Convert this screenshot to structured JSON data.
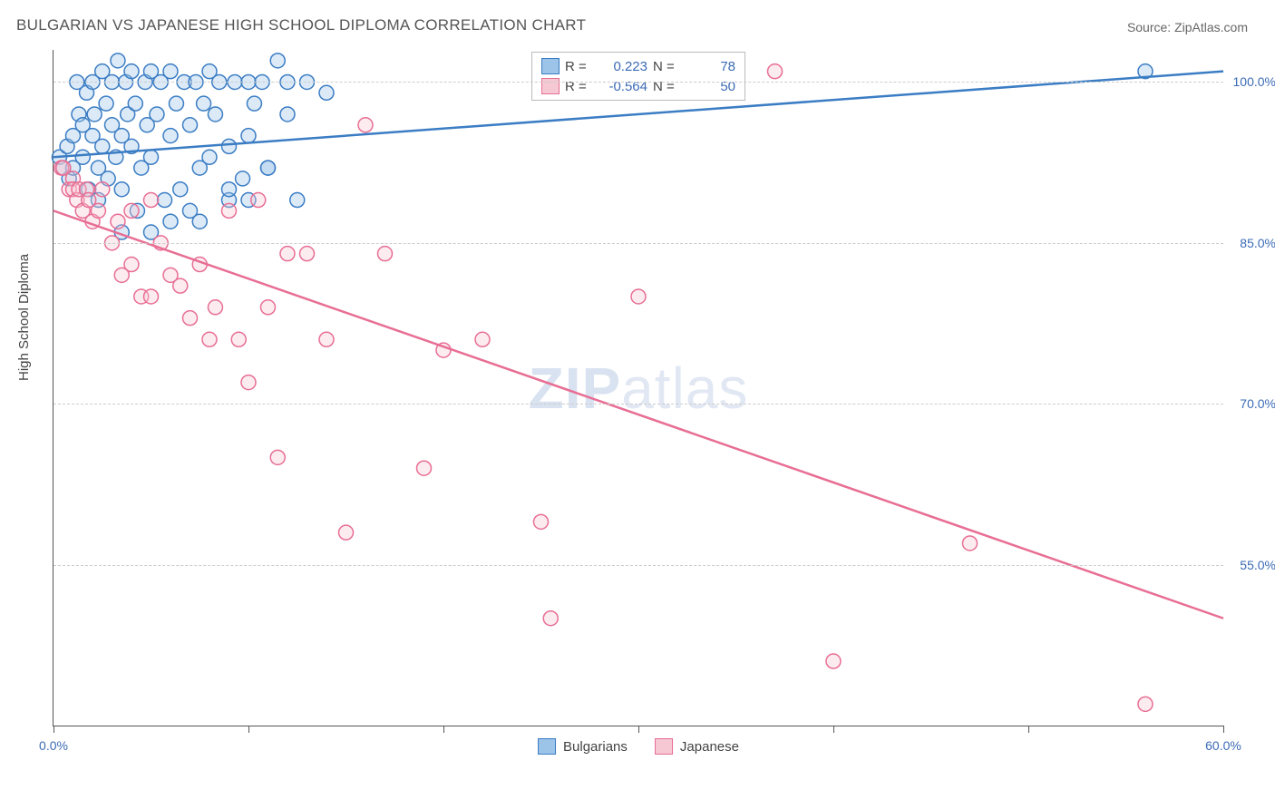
{
  "chart": {
    "type": "scatter",
    "title": "BULGARIAN VS JAPANESE HIGH SCHOOL DIPLOMA CORRELATION CHART",
    "source_label": "Source: ZipAtlas.com",
    "ylabel": "High School Diploma",
    "watermark_prefix": "ZIP",
    "watermark_suffix": "atlas",
    "background_color": "#ffffff",
    "grid_color": "#cccccc",
    "axis_color": "#555555",
    "tick_label_color": "#3b6bb5",
    "title_fontsize": 17,
    "label_fontsize": 15,
    "tick_fontsize": 14,
    "xlim": [
      0,
      60
    ],
    "ylim": [
      40,
      103
    ],
    "xticks": [
      0,
      10,
      20,
      30,
      40,
      50,
      60
    ],
    "xtick_labels": {
      "0": "0.0%",
      "60": "60.0%"
    },
    "yticks": [
      55,
      70,
      85,
      100
    ],
    "ytick_labels": [
      "55.0%",
      "70.0%",
      "85.0%",
      "100.0%"
    ],
    "marker_radius": 8,
    "marker_fill_opacity": 0.35,
    "trend_line_width": 2.5,
    "series": [
      {
        "name": "Bulgarians",
        "fill_color": "#9cc3e8",
        "stroke_color": "#3b7dc4",
        "R": "0.223",
        "N": "78",
        "trend": {
          "x1": 0,
          "y1": 93,
          "x2": 60,
          "y2": 101
        },
        "points": [
          [
            0.3,
            93
          ],
          [
            0.5,
            92
          ],
          [
            0.7,
            94
          ],
          [
            0.8,
            91
          ],
          [
            1,
            95
          ],
          [
            1,
            92
          ],
          [
            1.2,
            100
          ],
          [
            1.3,
            97
          ],
          [
            1.5,
            96
          ],
          [
            1.5,
            93
          ],
          [
            1.7,
            99
          ],
          [
            1.8,
            90
          ],
          [
            2,
            100
          ],
          [
            2,
            95
          ],
          [
            2.1,
            97
          ],
          [
            2.3,
            92
          ],
          [
            2.3,
            89
          ],
          [
            2.5,
            101
          ],
          [
            2.5,
            94
          ],
          [
            2.7,
            98
          ],
          [
            2.8,
            91
          ],
          [
            3,
            100
          ],
          [
            3,
            96
          ],
          [
            3.2,
            93
          ],
          [
            3.3,
            102
          ],
          [
            3.5,
            95
          ],
          [
            3.5,
            90
          ],
          [
            3.7,
            100
          ],
          [
            3.8,
            97
          ],
          [
            4,
            101
          ],
          [
            4,
            94
          ],
          [
            4.2,
            98
          ],
          [
            4.3,
            88
          ],
          [
            4.5,
            92
          ],
          [
            4.7,
            100
          ],
          [
            4.8,
            96
          ],
          [
            5,
            101
          ],
          [
            5,
            93
          ],
          [
            5.3,
            97
          ],
          [
            5.5,
            100
          ],
          [
            5.7,
            89
          ],
          [
            6,
            95
          ],
          [
            6,
            101
          ],
          [
            6.3,
            98
          ],
          [
            6.5,
            90
          ],
          [
            6.7,
            100
          ],
          [
            7,
            96
          ],
          [
            7,
            88
          ],
          [
            7.3,
            100
          ],
          [
            7.5,
            92
          ],
          [
            7.7,
            98
          ],
          [
            8,
            101
          ],
          [
            8,
            93
          ],
          [
            8.3,
            97
          ],
          [
            8.5,
            100
          ],
          [
            9,
            94
          ],
          [
            9,
            89
          ],
          [
            9.3,
            100
          ],
          [
            9.7,
            91
          ],
          [
            10,
            100
          ],
          [
            10,
            95
          ],
          [
            10.3,
            98
          ],
          [
            10.7,
            100
          ],
          [
            11,
            92
          ],
          [
            11.5,
            102
          ],
          [
            12,
            97
          ],
          [
            12,
            100
          ],
          [
            12.5,
            89
          ],
          [
            13,
            100
          ],
          [
            3.5,
            86
          ],
          [
            5,
            86
          ],
          [
            6,
            87
          ],
          [
            7.5,
            87
          ],
          [
            9,
            90
          ],
          [
            10,
            89
          ],
          [
            11,
            92
          ],
          [
            14,
            99
          ],
          [
            56,
            101
          ]
        ]
      },
      {
        "name": "Japanese",
        "fill_color": "#f5c8d4",
        "stroke_color": "#e86e94",
        "R": "-0.564",
        "N": "50",
        "trend": {
          "x1": 0,
          "y1": 88,
          "x2": 60,
          "y2": 50
        },
        "points": [
          [
            0.4,
            92
          ],
          [
            0.5,
            92
          ],
          [
            0.8,
            90
          ],
          [
            1,
            91
          ],
          [
            1,
            90
          ],
          [
            1.2,
            89
          ],
          [
            1.3,
            90
          ],
          [
            1.5,
            88
          ],
          [
            1.7,
            90
          ],
          [
            1.8,
            89
          ],
          [
            2,
            87
          ],
          [
            2.3,
            88
          ],
          [
            2.5,
            90
          ],
          [
            3,
            85
          ],
          [
            3.3,
            87
          ],
          [
            3.5,
            82
          ],
          [
            4,
            88
          ],
          [
            4,
            83
          ],
          [
            4.5,
            80
          ],
          [
            5,
            89
          ],
          [
            5,
            80
          ],
          [
            5.5,
            85
          ],
          [
            6,
            82
          ],
          [
            6.5,
            81
          ],
          [
            7,
            78
          ],
          [
            7.5,
            83
          ],
          [
            8,
            76
          ],
          [
            8.3,
            79
          ],
          [
            9,
            88
          ],
          [
            9.5,
            76
          ],
          [
            10,
            72
          ],
          [
            10.5,
            89
          ],
          [
            11,
            79
          ],
          [
            11.5,
            65
          ],
          [
            12,
            84
          ],
          [
            13,
            84
          ],
          [
            14,
            76
          ],
          [
            15,
            58
          ],
          [
            16,
            96
          ],
          [
            17,
            84
          ],
          [
            19,
            64
          ],
          [
            20,
            75
          ],
          [
            22,
            76
          ],
          [
            25,
            59
          ],
          [
            25.5,
            50
          ],
          [
            30,
            80
          ],
          [
            37,
            101
          ],
          [
            40,
            46
          ],
          [
            47,
            57
          ],
          [
            56,
            42
          ]
        ]
      }
    ],
    "legend_top": {
      "R_label": "R =",
      "N_label": "N ="
    },
    "legend_bottom_labels": [
      "Bulgarians",
      "Japanese"
    ]
  }
}
